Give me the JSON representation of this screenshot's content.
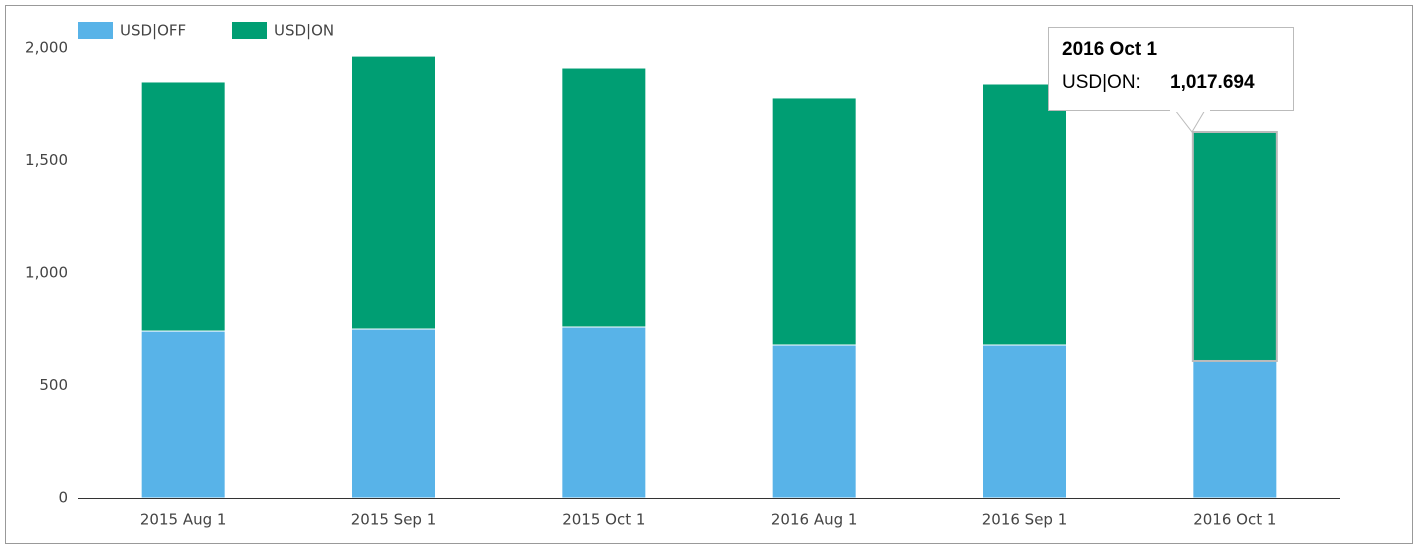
{
  "chart_data": {
    "type": "stacked-bar",
    "categories": [
      "2015 Aug 1",
      "2015 Sep 1",
      "2015 Oct 1",
      "2016 Aug 1",
      "2016 Sep 1",
      "2016 Oct 1"
    ],
    "series": [
      {
        "name": "USD|OFF",
        "color": "#58b3e8",
        "values": [
          742,
          751,
          760,
          680,
          680,
          609
        ]
      },
      {
        "name": "USD|ON",
        "color": "#009e73",
        "values": [
          1107,
          1213,
          1151,
          1098,
          1160,
          1017.694
        ],
        "value_labels": [
          null,
          null,
          null,
          null,
          null,
          "1,017.694"
        ]
      }
    ],
    "ylim": [
      0,
      2000
    ],
    "yticks": [
      0,
      500,
      {
        "value": 1000,
        "label": "1,000"
      },
      {
        "value": 1500,
        "label": "1,500"
      },
      {
        "value": 2000,
        "label": "2,000"
      }
    ],
    "tooltip": {
      "label": "USD|ON:"
    }
  }
}
